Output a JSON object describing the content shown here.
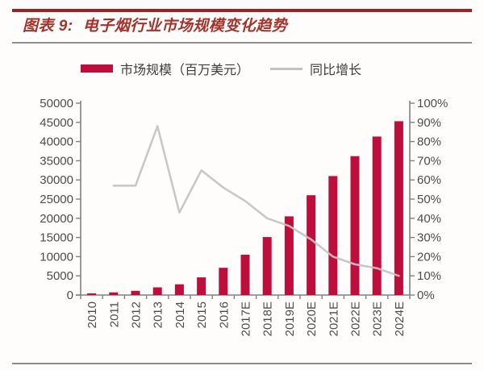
{
  "header": {
    "figure_label": "图表 9:",
    "figure_title": "电子烟行业市场规模变化趋势"
  },
  "legend": {
    "market_size_label": "市场规模（百万美元）",
    "growth_label": "同比增长"
  },
  "chart_data": {
    "type": "bar",
    "subtype": "bar-line combo, dual y-axis",
    "title": "电子烟行业市场规模变化趋势",
    "categories": [
      "2010",
      "2011",
      "2012",
      "2013",
      "2014",
      "2015",
      "2016",
      "2017E",
      "2018E",
      "2019E",
      "2020E",
      "2021E",
      "2022E",
      "2023E",
      "2024E"
    ],
    "series": [
      {
        "name": "市场规模（百万美元）",
        "type": "bar",
        "axis": "left",
        "color": "#BE0F3C",
        "values": [
          450,
          700,
          1100,
          2000,
          2800,
          4600,
          7100,
          10500,
          15100,
          20500,
          26000,
          31000,
          36200,
          41300,
          45300
        ]
      },
      {
        "name": "同比增长",
        "type": "line",
        "axis": "right",
        "color": "#C3C3C3",
        "values": [
          null,
          57,
          57,
          88,
          43,
          65,
          56,
          49,
          40,
          36,
          29,
          20,
          16,
          14,
          10
        ]
      }
    ],
    "left_axis": {
      "min": 0,
      "max": 50000,
      "step": 5000,
      "tick_labels": [
        "0",
        "5000",
        "10000",
        "15000",
        "20000",
        "25000",
        "30000",
        "35000",
        "40000",
        "45000",
        "50000"
      ]
    },
    "right_axis": {
      "min": 0,
      "max": 100,
      "step": 10,
      "tick_labels": [
        "0%",
        "10%",
        "20%",
        "30%",
        "40%",
        "50%",
        "60%",
        "70%",
        "80%",
        "90%",
        "100%"
      ]
    },
    "grid": false,
    "legend_position": "top"
  },
  "colors": {
    "accent_rule": "#9B2226",
    "title_text": "#A5322A",
    "bar": "#BE0F3C",
    "line": "#C3C3C3",
    "axis": "#808080",
    "tick_text": "#4D4D4D"
  }
}
